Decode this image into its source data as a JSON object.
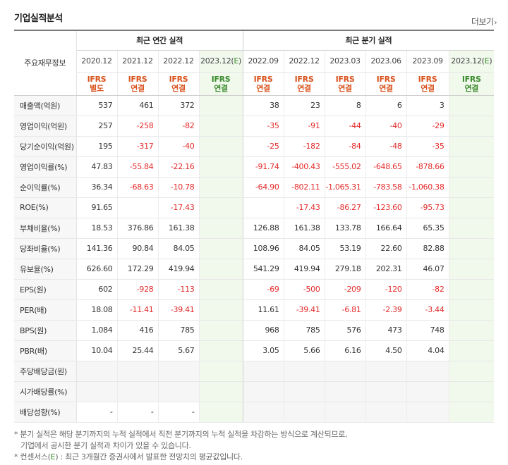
{
  "section_title": "기업실적분석",
  "more_link": "더보기",
  "annual_header": "최근 연간 실적",
  "quarter_header": "최근 분기 실적",
  "corner_label": "주요재무정보",
  "annual_periods": [
    {
      "period": "2020.12",
      "std1": "IFRS",
      "std2": "별도"
    },
    {
      "period": "2021.12",
      "std1": "IFRS",
      "std2": "연결"
    },
    {
      "period": "2022.12",
      "std1": "IFRS",
      "std2": "연결"
    },
    {
      "period_main": "2023.12",
      "period_e": "E",
      "std1": "IFRS",
      "std2": "연결"
    }
  ],
  "quarter_periods": [
    {
      "period": "2022.09",
      "std1": "IFRS",
      "std2": "연결"
    },
    {
      "period": "2022.12",
      "std1": "IFRS",
      "std2": "연결"
    },
    {
      "period": "2023.03",
      "std1": "IFRS",
      "std2": "연결"
    },
    {
      "period": "2023.06",
      "std1": "IFRS",
      "std2": "연결"
    },
    {
      "period": "2023.09",
      "std1": "IFRS",
      "std2": "연결"
    },
    {
      "period_main": "2023.12",
      "period_e": "E",
      "std1": "IFRS",
      "std2": "연결"
    }
  ],
  "rows": [
    {
      "label": "매출액(억원)",
      "annual": [
        "537",
        "461",
        "372",
        ""
      ],
      "quarter": [
        "38",
        "23",
        "8",
        "6",
        "3",
        ""
      ]
    },
    {
      "label": "영업이익(억원)",
      "annual": [
        "257",
        "-258",
        "-82",
        ""
      ],
      "quarter": [
        "-35",
        "-91",
        "-44",
        "-40",
        "-29",
        ""
      ]
    },
    {
      "label": "당기순이익(억원)",
      "annual": [
        "195",
        "-317",
        "-40",
        ""
      ],
      "quarter": [
        "-25",
        "-182",
        "-84",
        "-48",
        "-35",
        ""
      ]
    },
    {
      "label": "영업이익률(%)",
      "annual": [
        "47.83",
        "-55.84",
        "-22.16",
        ""
      ],
      "quarter": [
        "-91.74",
        "-400.43",
        "-555.02",
        "-648.65",
        "-878.66",
        ""
      ]
    },
    {
      "label": "순이익률(%)",
      "annual": [
        "36.34",
        "-68.63",
        "-10.78",
        ""
      ],
      "quarter": [
        "-64.90",
        "-802.11",
        "-1,065.31",
        "-783.58",
        "-1,060.38",
        ""
      ]
    },
    {
      "label": "ROE(%)",
      "annual": [
        "91.65",
        "",
        "-17.43",
        ""
      ],
      "quarter": [
        "",
        "-17.43",
        "-86.27",
        "-123.60",
        "-95.73",
        ""
      ]
    },
    {
      "label": "부채비율(%)",
      "annual": [
        "18.53",
        "376.86",
        "161.38",
        ""
      ],
      "quarter": [
        "126.88",
        "161.38",
        "133.78",
        "166.64",
        "65.35",
        ""
      ]
    },
    {
      "label": "당좌비율(%)",
      "annual": [
        "141.36",
        "90.84",
        "84.05",
        ""
      ],
      "quarter": [
        "108.96",
        "84.05",
        "53.19",
        "22.60",
        "82.88",
        ""
      ]
    },
    {
      "label": "유보율(%)",
      "annual": [
        "626.60",
        "172.29",
        "419.94",
        ""
      ],
      "quarter": [
        "541.29",
        "419.94",
        "279.18",
        "202.31",
        "46.07",
        ""
      ]
    },
    {
      "label": "EPS(원)",
      "annual": [
        "602",
        "-928",
        "-113",
        ""
      ],
      "quarter": [
        "-69",
        "-500",
        "-209",
        "-120",
        "-82",
        ""
      ]
    },
    {
      "label": "PER(배)",
      "annual": [
        "18.08",
        "-11.41",
        "-39.41",
        ""
      ],
      "quarter": [
        "11.61",
        "-39.41",
        "-6.81",
        "-2.39",
        "-3.44",
        ""
      ]
    },
    {
      "label": "BPS(원)",
      "annual": [
        "1,084",
        "416",
        "785",
        ""
      ],
      "quarter": [
        "968",
        "785",
        "576",
        "473",
        "748",
        ""
      ]
    },
    {
      "label": "PBR(배)",
      "annual": [
        "10.04",
        "25.44",
        "5.67",
        ""
      ],
      "quarter": [
        "3.05",
        "5.66",
        "6.16",
        "4.50",
        "4.04",
        ""
      ]
    },
    {
      "label": "주당배당금(원)",
      "annual": [
        "",
        "",
        "",
        ""
      ],
      "quarter": [
        "",
        "",
        "",
        "",
        "",
        ""
      ],
      "shaded": true
    },
    {
      "label": "시가배당률(%)",
      "annual": [
        "",
        "",
        "",
        ""
      ],
      "quarter": [
        "",
        "",
        "",
        "",
        "",
        ""
      ],
      "shaded": true
    },
    {
      "label": "배당성향(%)",
      "annual": [
        "-",
        "-",
        "-",
        ""
      ],
      "quarter": [
        "",
        "",
        "",
        "",
        "",
        ""
      ],
      "shaded_quarter": true
    }
  ],
  "group_starts": [
    3,
    6,
    9,
    13
  ],
  "notes": {
    "line1": "* 분기 실적은 해당 분기까지의 누적 실적에서 직전 분기까지의 누적 실적을 차감하는 방식으로 계산되므로,",
    "line2": "기업에서 공시한 분기 실적과 차이가 있을 수 있습니다.",
    "line3_pre": "* 컨센서스(",
    "line3_e": "E",
    "line3_post": ") : 최근 3개월간 증권사에서 발표한 전망치의 평균값입니다."
  },
  "colors": {
    "negative": "#e32b2b",
    "standard": "#d9531e",
    "estimate": "#3c8d2f",
    "estimate_bg": "#f1f8ec"
  }
}
